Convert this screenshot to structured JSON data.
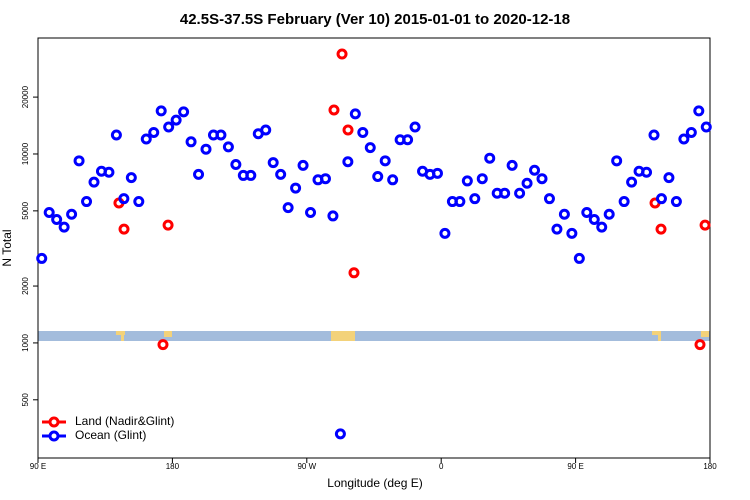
{
  "chart_data": {
    "type": "scatter",
    "title": "42.5S-37.5S February (Ver 10)   2015-01-01 to 2020-12-18",
    "x_label": "Longitude (deg E)",
    "y_label": "N Total",
    "log_y": true,
    "legend_position": "lower left",
    "xlim": [
      90,
      540
    ],
    "xticks": [
      {
        "value": 90,
        "label": "90 E"
      },
      180,
      {
        "value": 270,
        "label": "90 W"
      },
      {
        "value": 360,
        "label": "0"
      },
      {
        "value": 450,
        "label": "90 E"
      },
      {
        "value": 540,
        "label": "180"
      }
    ],
    "ylim": [
      246,
      41100
    ],
    "yticks": [
      500,
      1000,
      2000,
      5000,
      10000,
      20000
    ],
    "series": [
      {
        "name": "Land (Nadir&Glint)",
        "color": "#ff0000",
        "x": [
          144.2,
          147.6,
          173.7,
          177.1,
          288.2,
          293.6,
          297.6,
          301.6,
          503.2,
          507.2,
          533.3,
          536.7
        ],
        "values": [
          5500,
          4000,
          980,
          4200,
          17100,
          33800,
          13400,
          2350,
          5500,
          4000,
          980,
          4200
        ]
      },
      {
        "name": "Ocean (Glint)",
        "color": "#0000ff",
        "x": [
          92.5,
          97.5,
          102.5,
          107.5,
          112.5,
          117.5,
          122.5,
          127.5,
          132.5,
          137.5,
          142.5,
          147.5,
          152.5,
          157.5,
          162.5,
          167.5,
          172.5,
          177.5,
          182.5,
          187.5,
          192.5,
          197.5,
          202.5,
          207.5,
          212.5,
          217.5,
          222.5,
          227.5,
          232.5,
          237.5,
          242.5,
          247.5,
          252.5,
          257.5,
          262.5,
          267.5,
          272.5,
          277.5,
          282.5,
          287.5,
          292.5,
          297.5,
          302.5,
          307.5,
          312.5,
          317.5,
          322.5,
          327.5,
          332.5,
          337.5,
          342.5,
          347.5,
          352.5,
          357.5,
          362.5,
          367.5,
          372.5,
          377.5,
          382.5,
          387.5,
          392.5,
          397.5,
          402.5,
          407.5,
          412.5,
          417.5,
          422.5,
          427.5,
          432.5,
          437.5,
          442.5,
          447.5,
          452.5,
          457.5,
          462.5,
          467.5,
          472.5,
          477.5,
          482.5,
          487.5,
          492.5,
          497.5,
          502.5,
          507.5,
          512.5,
          517.5,
          522.5,
          527.5,
          532.5,
          537.5
        ],
        "values": [
          2800,
          4900,
          4500,
          4100,
          4800,
          9200,
          5600,
          7100,
          8100,
          8000,
          12600,
          5800,
          7500,
          5600,
          12000,
          13000,
          16900,
          13900,
          15100,
          16700,
          11600,
          7800,
          10600,
          12600,
          12600,
          10900,
          8800,
          7700,
          7700,
          12800,
          13400,
          9000,
          7800,
          5200,
          6600,
          8700,
          4900,
          7300,
          7400,
          4700,
          330,
          9100,
          16300,
          13000,
          10800,
          7600,
          9200,
          7300,
          11900,
          11900,
          13900,
          8100,
          7800,
          7900,
          3800,
          5600,
          5600,
          7200,
          5800,
          7400,
          9500,
          6200,
          6200,
          8700,
          6200,
          7000,
          8200,
          7400,
          5800,
          4000,
          4800,
          3800,
          2800,
          4900,
          4500,
          4100,
          4800,
          9200,
          5600,
          7100,
          8100,
          8000,
          12600,
          5800,
          7500,
          5600,
          12000,
          13000,
          16900,
          13900
        ]
      }
    ]
  }
}
